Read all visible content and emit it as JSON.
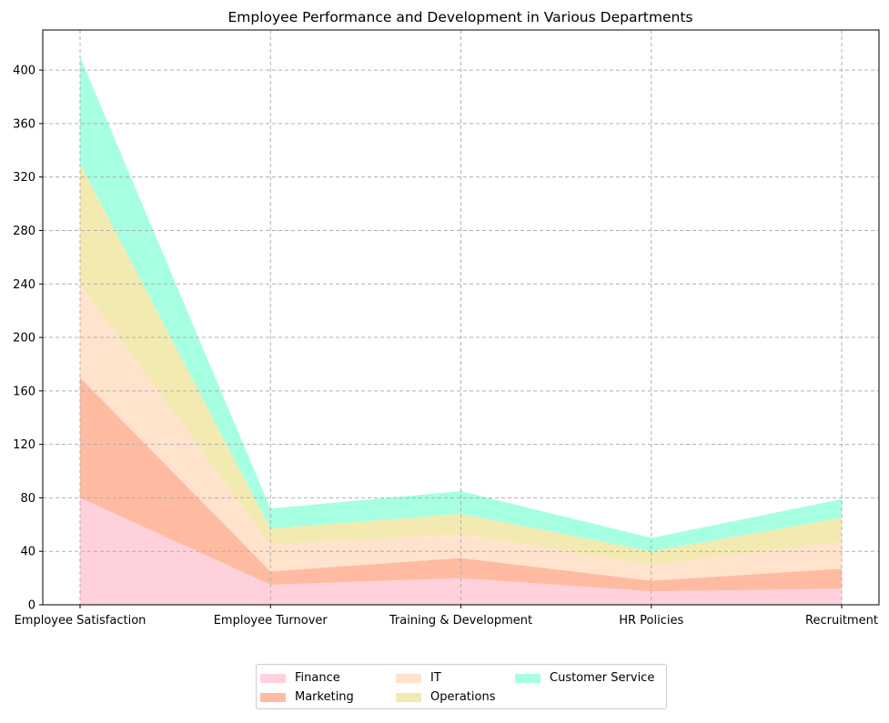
{
  "chart_data": {
    "type": "area",
    "stacked": true,
    "title": "Employee Performance and Development in Various Departments",
    "xlabel": "",
    "ylabel": "",
    "categories": [
      "Employee Satisfaction",
      "Employee Turnover",
      "Training & Development",
      "HR Policies",
      "Recruitment"
    ],
    "ylim": [
      0,
      430
    ],
    "yticks": [
      0,
      40,
      80,
      120,
      160,
      200,
      240,
      280,
      320,
      360,
      400
    ],
    "grid": true,
    "legend_position": "bottom-center",
    "series": [
      {
        "name": "Finance",
        "color": "#ffd1dc",
        "values": [
          80,
          15,
          20,
          10,
          12
        ]
      },
      {
        "name": "Marketing",
        "color": "#ffbba1",
        "values": [
          90,
          10,
          15,
          8,
          15
        ]
      },
      {
        "name": "IT",
        "color": "#ffe3cd",
        "values": [
          70,
          20,
          18,
          12,
          20
        ]
      },
      {
        "name": "Operations",
        "color": "#f3eab1",
        "values": [
          90,
          12,
          15,
          10,
          18
        ]
      },
      {
        "name": "Customer Service",
        "color": "#a6ffe0",
        "values": [
          80,
          15,
          17,
          10,
          14
        ]
      }
    ]
  }
}
